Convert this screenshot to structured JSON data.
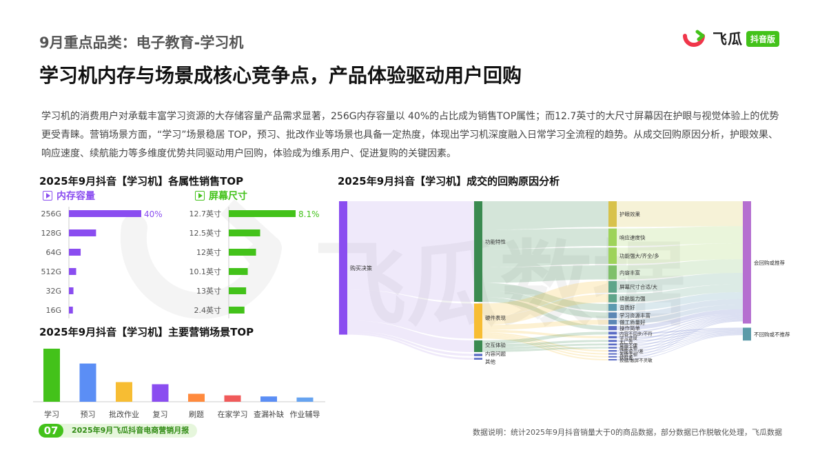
{
  "brand": {
    "name": "飞瓜",
    "badge": "抖音版",
    "watermark": "飞瓜数据"
  },
  "header": {
    "kicker": "9月重点品类：电子教育-学习机",
    "title": "学习机内存与场景成核心竞争点，产品体验驱动用户回购"
  },
  "description": "学习机的消费用户对承载丰富学习资源的大存储容量产品需求显著，256G内存容量以 40%的占比成为销售TOP属性；而12.7英寸的大尺寸屏幕因在护眼与视觉体验上的优势更受青睐。营销场景方面，“学习”场景稳居 TOP，预习、批改作业等场景也具备一定热度，体现出学习机深度融入日常学习全流程的趋势。从成交回购原因分析，护眼效果、响应速度、续航能力等多维度优势共同驱动用户回购，体验成为维系用户、促进复购的关键因素。",
  "colors": {
    "purple": "#8a4df0",
    "green": "#43c21a",
    "blue": "#5b8ef5",
    "yellow": "#f7bd33",
    "orange": "#ff8a3d",
    "red": "#f05a5a",
    "sky": "#66a3f0"
  },
  "footer": {
    "page": "07",
    "report": "2025年9月飞瓜抖音电商营销月报",
    "note": "数据说明：统计2025年9月抖音销量大于0的商品数据，部分数据已作脱敏化处理，飞瓜数据"
  },
  "chart_data": [
    {
      "type": "bar",
      "orientation": "horizontal",
      "title": "2025年9月抖音【学习机】各属性销售TOP",
      "subtitle": "内存容量",
      "categories": [
        "256G",
        "128G",
        "64G",
        "512G",
        "32G",
        "16G"
      ],
      "values": [
        40,
        15,
        6.5,
        4,
        2.5,
        2.2
      ],
      "data_labels": {
        "256G": "40%"
      },
      "color": "#8a4df0"
    },
    {
      "type": "bar",
      "orientation": "horizontal",
      "subtitle": "屏幕尺寸",
      "categories": [
        "12.7英寸",
        "12.5英寸",
        "12英寸",
        "10.1英寸",
        "13英寸",
        "2.4英寸"
      ],
      "values": [
        8.1,
        3.8,
        3.3,
        2.3,
        2.1,
        1.9
      ],
      "data_labels": {
        "12.7英寸": "8.1%"
      },
      "color": "#43c21a"
    },
    {
      "type": "bar",
      "title": "2025年9月抖音【学习机】主要营销场景TOP",
      "categories": [
        "学习",
        "预习",
        "批改作业",
        "复习",
        "刷题",
        "在家学习",
        "查漏补缺",
        "作业辅导"
      ],
      "values": [
        100,
        72,
        37,
        33,
        15,
        12,
        10,
        8
      ],
      "colors": [
        "#43c21a",
        "#5b8ef5",
        "#f7bd33",
        "#8a4df0",
        "#ff8a3d",
        "#f05a5a",
        "#5b8ef5",
        "#66a3f0"
      ]
    },
    {
      "type": "sankey",
      "title": "2025年9月抖音【学习机】成交的回购原因分析",
      "nodes": {
        "level1": [
          "购买决策"
        ],
        "level2": [
          "功能特性",
          "硬件表现",
          "交互体验",
          "内容问题",
          "其他"
        ],
        "level3": [
          "护眼效果",
          "响应速度快",
          "功能强大/齐全/多",
          "内容丰富",
          "屏幕尺寸合适/大",
          "续航能力强",
          "音质好",
          "学习资源丰富",
          "做工质量好",
          "操作简单",
          "内容不同步/不符",
          "学习进度",
          "无广告",
          "使用不便",
          "画面卡顿",
          "功能单一/差",
          "系统卡顿",
          "续航差",
          "按键/触屏不灵敏"
        ],
        "level4": [
          "会回购或推荐",
          "不回购或不推荐"
        ]
      },
      "values": {
        "level2": [
          43,
          15,
          5,
          1,
          0.8
        ],
        "level3": [
          11,
          7.5,
          7,
          6,
          5,
          3.5,
          3,
          2.5,
          2,
          1.8,
          1.2,
          1,
          0.9,
          0.8,
          0.7,
          0.7,
          0.6,
          0.6,
          0.6
        ],
        "level4": [
          63,
          5.5
        ]
      }
    }
  ]
}
